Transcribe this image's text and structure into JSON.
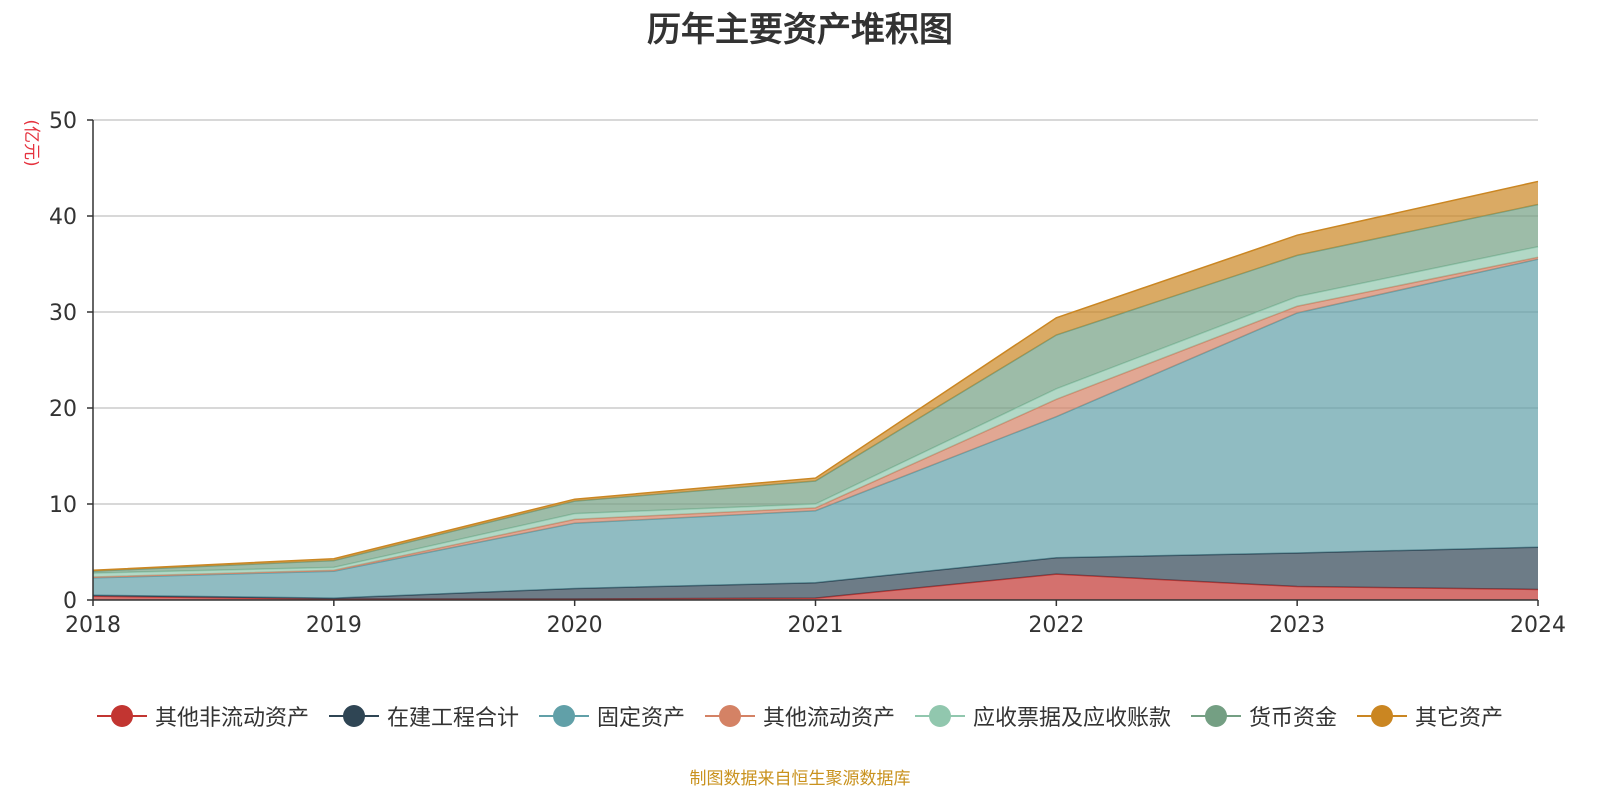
{
  "chart_data": {
    "type": "area",
    "stacked": true,
    "title": "历年主要资产堆积图",
    "ylabel": "(亿元)",
    "xlabel": "",
    "x": [
      "2018",
      "2019",
      "2020",
      "2021",
      "2022",
      "2023",
      "2024"
    ],
    "ylim": [
      0,
      50
    ],
    "yticks": [
      "0",
      "10",
      "20",
      "30",
      "40",
      "50"
    ],
    "grid": true,
    "legend_position": "bottom",
    "series": [
      {
        "name": "其他非流动资产",
        "color": "#c23531",
        "values": [
          0.4,
          0.1,
          0.1,
          0.2,
          2.7,
          1.4,
          1.1
        ]
      },
      {
        "name": "在建工程合计",
        "color": "#2f4554",
        "values": [
          0.1,
          0.1,
          1.1,
          1.6,
          1.7,
          3.5,
          4.4
        ]
      },
      {
        "name": "固定资产",
        "color": "#61a0a8",
        "values": [
          1.8,
          2.8,
          6.8,
          7.5,
          14.7,
          25.0,
          30.0
        ]
      },
      {
        "name": "其他流动资产",
        "color": "#d48265",
        "values": [
          0.1,
          0.1,
          0.4,
          0.3,
          1.8,
          0.7,
          0.2
        ]
      },
      {
        "name": "应收票据及应收账款",
        "color": "#91c7ae",
        "values": [
          0.4,
          0.3,
          0.6,
          0.4,
          1.1,
          1.0,
          1.1
        ]
      },
      {
        "name": "货币资金",
        "color": "#749f83",
        "values": [
          0.2,
          0.7,
          1.3,
          2.4,
          5.6,
          4.3,
          4.4
        ]
      },
      {
        "name": "其它资产",
        "color": "#ca8622",
        "values": [
          0.1,
          0.2,
          0.2,
          0.3,
          1.8,
          2.1,
          2.4
        ]
      }
    ]
  },
  "source_note": "制图数据来自恒生聚源数据库",
  "colors": {
    "source_text": "#c9921e",
    "unit_text": "#e5323e",
    "axis": "#333333",
    "grid": "#cccccc"
  }
}
